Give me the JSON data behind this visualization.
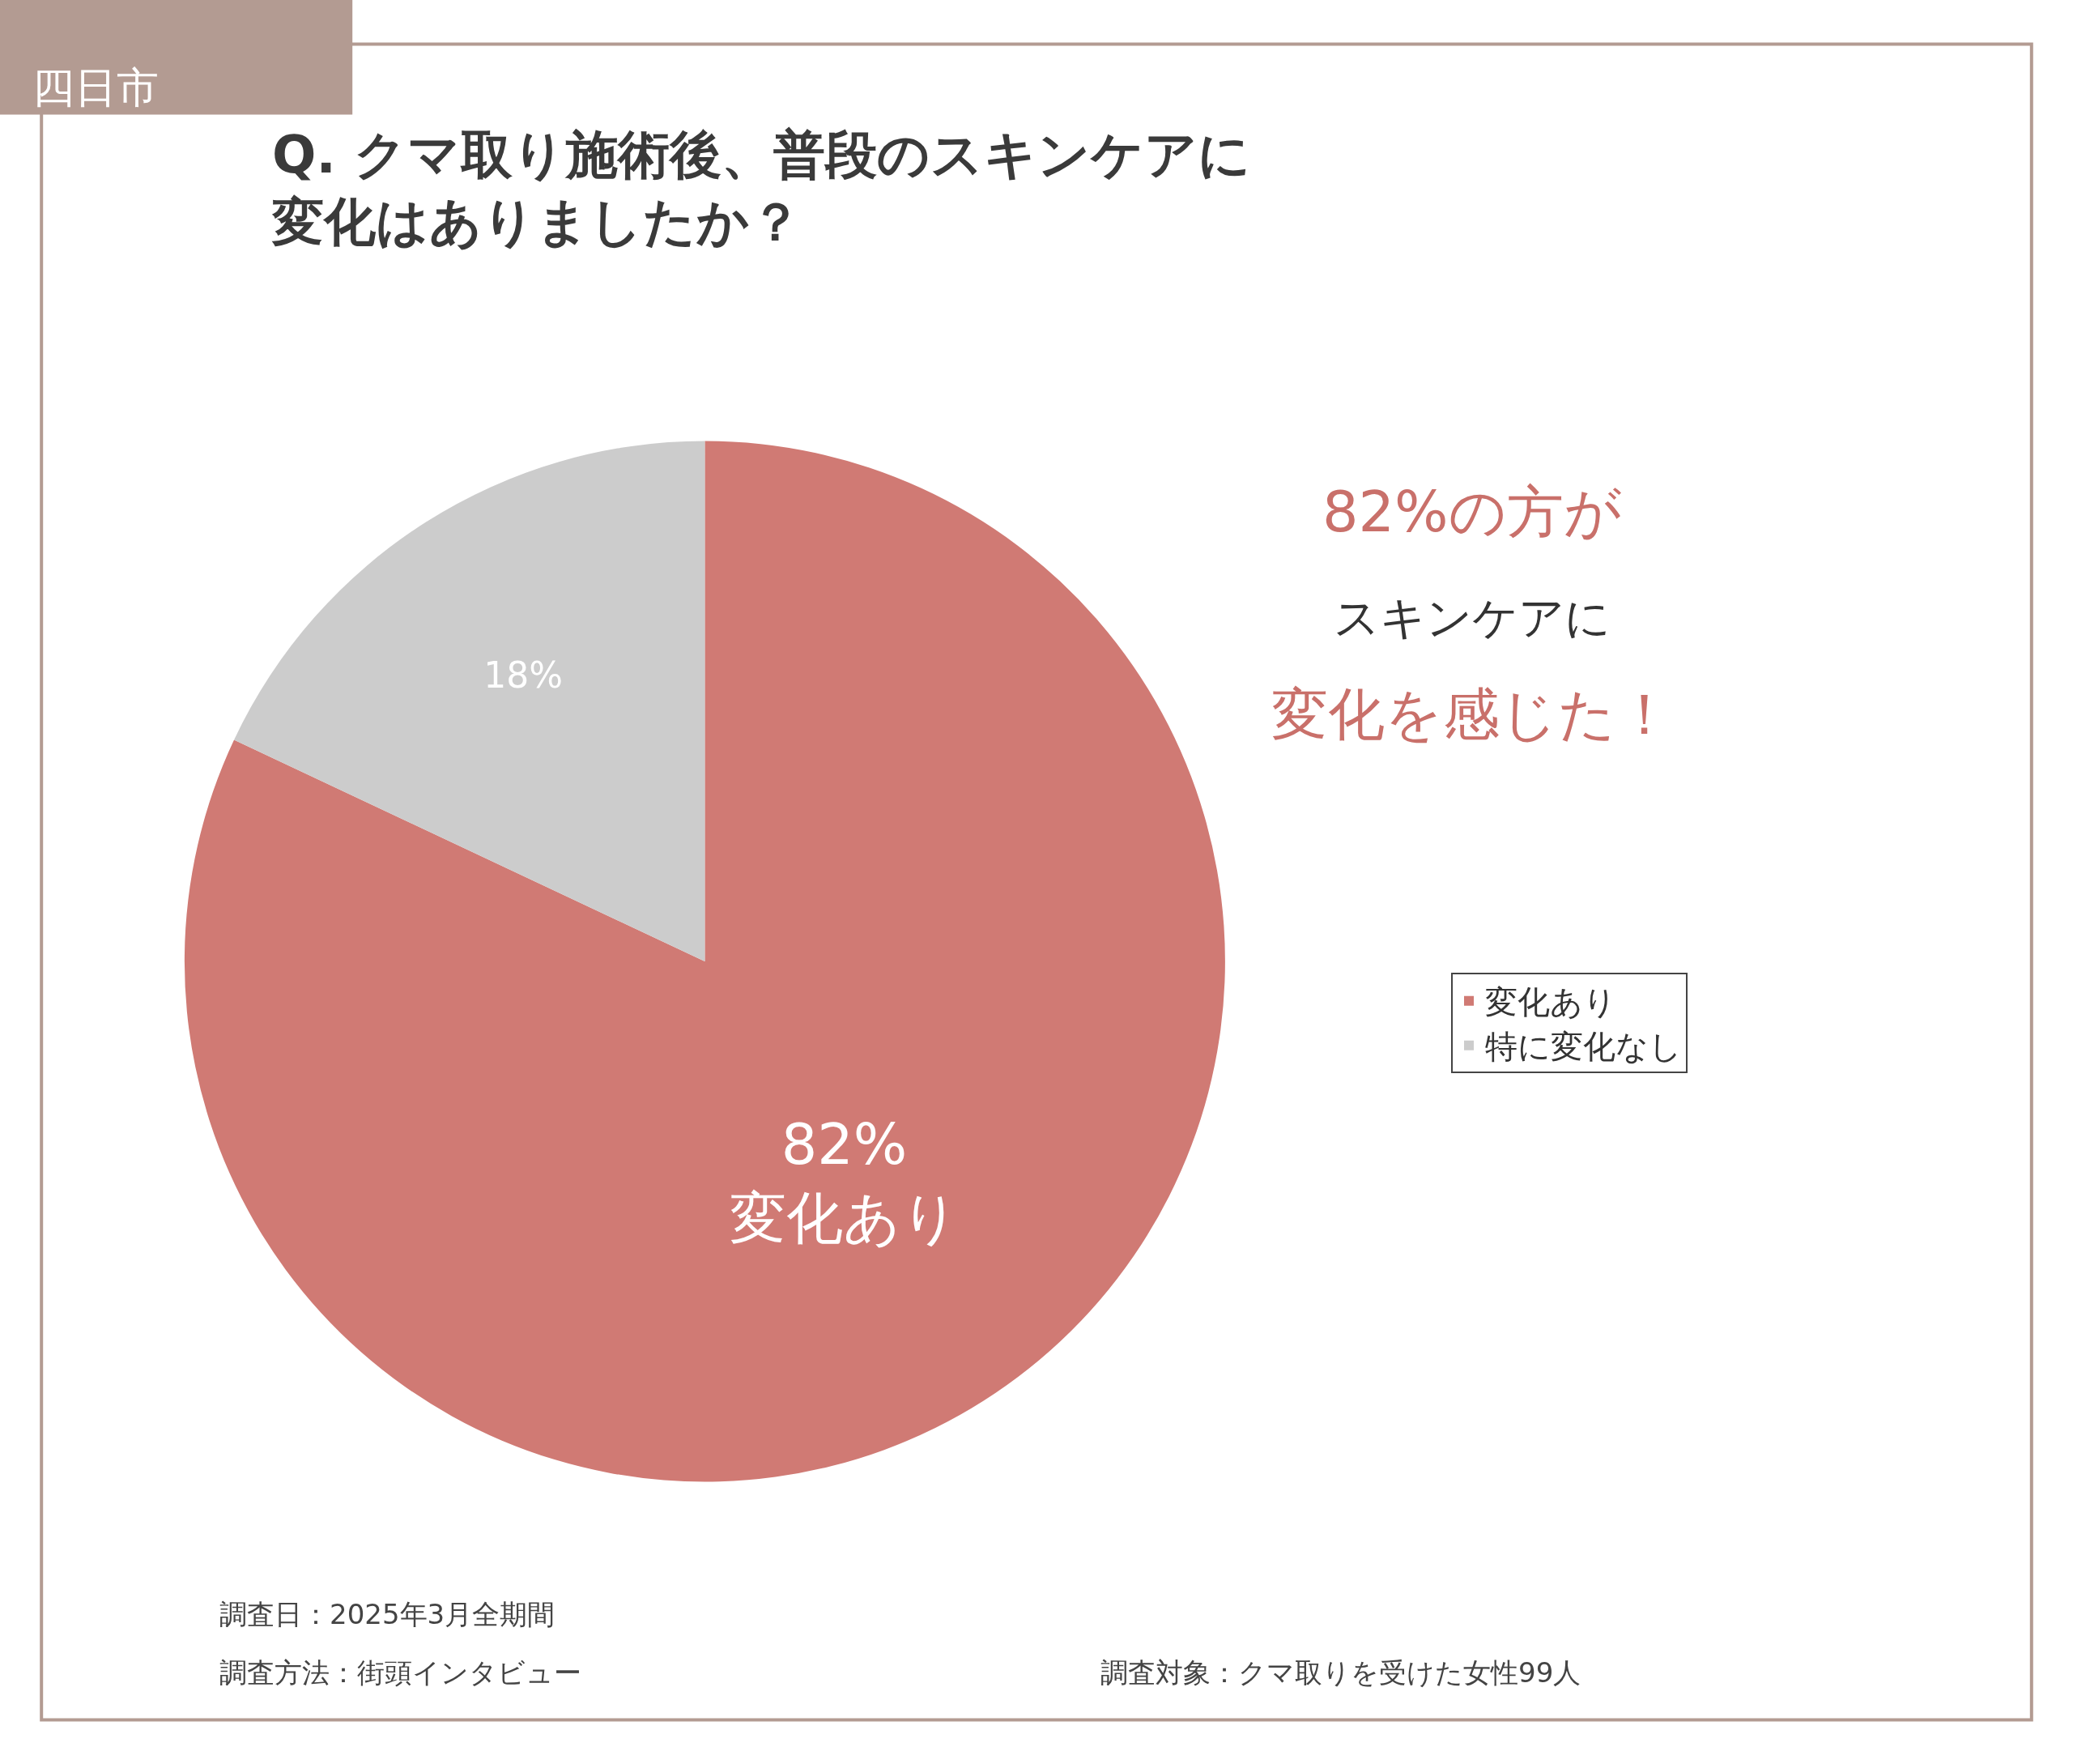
{
  "chart_data": {
    "type": "pie",
    "title": "Q. クマ取り施術後、普段のスキンケアに変化はありましたか？",
    "categories": [
      "変化あり",
      "特に変化なし"
    ],
    "values": [
      82,
      18
    ],
    "colors": [
      "#d07a74",
      "#cccccc"
    ],
    "value_labels": [
      "82%\n変化あり",
      "18%"
    ],
    "legend": "right",
    "annotations": [
      "四日市",
      "82%の方が",
      "スキンケアに",
      "変化を感じた！",
      "調査日：2025年3月全期間",
      "調査方法：街頭インタビュー",
      "調査対象：クマ取りを受けた女性99人"
    ]
  }
}
